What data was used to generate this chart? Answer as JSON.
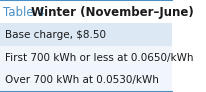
{
  "title_prefix": "Table 4",
  "title_main": " Winter (November–June)",
  "rows": [
    "Base charge, $8.50",
    "First 700 kWh or less at 0.0650/kWh",
    "Over 700 kWh at 0.0530/kWh"
  ],
  "title_prefix_color": "#4a90c4",
  "title_main_color": "#1a1a1a",
  "row_colors": [
    "#dce9f5",
    "#f0f6fc",
    "#f0f6fc"
  ],
  "border_color": "#4a90c4",
  "text_color": "#1a1a1a",
  "bg_color": "#ffffff",
  "font_size_title": 8.5,
  "font_size_rows": 7.5
}
